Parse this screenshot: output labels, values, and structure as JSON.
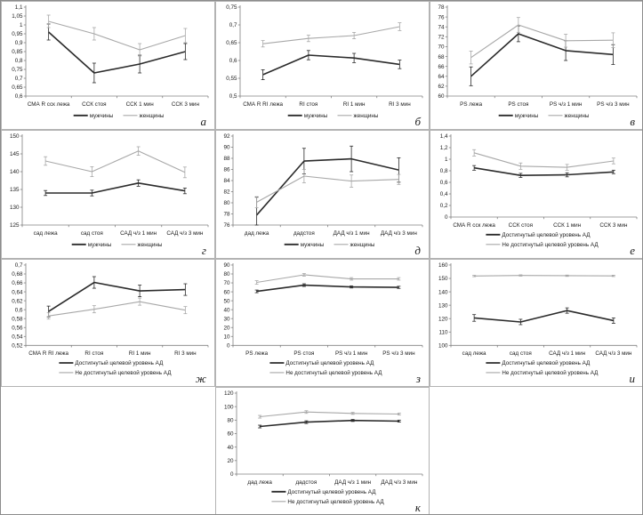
{
  "colors": {
    "series_dark": "#2b2b2b",
    "series_light": "#a8a8a8",
    "axis": "#808080",
    "text": "#1a1a1a",
    "panel_border": "#b3b3b3",
    "background": "#ffffff"
  },
  "chart_data": [
    {
      "label": "а",
      "type": "line",
      "categories": [
        "СМА R сск лежа",
        "ССК стоя",
        "ССК 1 мин",
        "ССК 3 мин"
      ],
      "ylim": [
        0.6,
        1.1
      ],
      "yticks": {
        "values": [
          0.6,
          0.65,
          0.7,
          0.75,
          0.8,
          0.85,
          0.9,
          0.95,
          1,
          1.05,
          1.1
        ],
        "labels": [
          "0,6",
          "0,65",
          "0,7",
          "0,75",
          "0,8",
          "0,85",
          "0,9",
          "0,95",
          "1",
          "1,05",
          "1,1"
        ]
      },
      "legend_layout": "row",
      "series": [
        {
          "name": "мужчины",
          "role": "dark",
          "values": [
            0.96,
            0.73,
            0.78,
            0.85
          ],
          "errors": [
            0.045,
            0.055,
            0.05,
            0.045
          ]
        },
        {
          "name": "женщины",
          "role": "light",
          "values": [
            1.02,
            0.95,
            0.86,
            0.94
          ],
          "errors": [
            0.035,
            0.035,
            0.035,
            0.04
          ]
        }
      ]
    },
    {
      "label": "б",
      "type": "line",
      "categories": [
        "СМА R RI лежа",
        "RI стоя",
        "RI 1 мин",
        "RI 3 мин"
      ],
      "ylim": [
        0.5,
        0.75
      ],
      "yticks": {
        "values": [
          0.5,
          0.55,
          0.6,
          0.65,
          0.7,
          0.75
        ],
        "labels": [
          "0,5",
          "0,55",
          "0,6",
          "0,65",
          "0,7",
          "0,75"
        ]
      },
      "legend_layout": "row",
      "series": [
        {
          "name": "мужчины",
          "role": "dark",
          "values": [
            0.56,
            0.615,
            0.607,
            0.589
          ],
          "errors": [
            0.014,
            0.013,
            0.013,
            0.012
          ]
        },
        {
          "name": "женщины",
          "role": "light",
          "values": [
            0.647,
            0.662,
            0.67,
            0.695
          ],
          "errors": [
            0.009,
            0.009,
            0.009,
            0.011
          ]
        }
      ]
    },
    {
      "label": "в",
      "type": "line",
      "categories": [
        "PS лежа",
        "PS стоя",
        "PS ч/з 1 мин",
        "PS ч/з 3 мин"
      ],
      "ylim": [
        60,
        78
      ],
      "yticks": {
        "values": [
          60,
          62,
          64,
          66,
          68,
          70,
          72,
          74,
          76,
          78
        ],
        "labels": [
          "60",
          "62",
          "64",
          "66",
          "68",
          "70",
          "72",
          "74",
          "76",
          "78"
        ]
      },
      "legend_layout": "row",
      "series": [
        {
          "name": "мужчины",
          "role": "dark",
          "values": [
            64,
            72.6,
            69.2,
            68.4
          ],
          "errors": [
            1.9,
            1.6,
            2.0,
            2.0
          ]
        },
        {
          "name": "женщины",
          "role": "light",
          "values": [
            67.8,
            74.4,
            71.2,
            71.3
          ],
          "errors": [
            1.3,
            1.5,
            1.3,
            1.5
          ]
        }
      ]
    },
    {
      "label": "г",
      "type": "line",
      "categories": [
        "сад лежа",
        "сад стоя",
        "САД ч/з 1 мин",
        "САД ч/з 3 мин"
      ],
      "ylim": [
        125,
        150
      ],
      "yticks": {
        "values": [
          125,
          130,
          135,
          140,
          145,
          150
        ],
        "labels": [
          "125",
          "130",
          "135",
          "140",
          "145",
          "150"
        ]
      },
      "legend_layout": "row",
      "series": [
        {
          "name": "мужчины",
          "role": "dark",
          "values": [
            134,
            134,
            136.8,
            134.6
          ],
          "errors": [
            0.7,
            0.8,
            0.9,
            0.8
          ]
        },
        {
          "name": "женщины",
          "role": "light",
          "values": [
            143,
            140,
            145.8,
            139.8
          ],
          "errors": [
            1.2,
            1.4,
            1.2,
            1.5
          ]
        }
      ]
    },
    {
      "label": "д",
      "type": "line",
      "categories": [
        "дад лежа",
        "дадстоя",
        "ДАД ч/з 1 мин",
        "ДАД ч/з 3 мин"
      ],
      "ylim": [
        76,
        92
      ],
      "yticks": {
        "values": [
          76,
          78,
          80,
          82,
          84,
          86,
          88,
          90,
          92
        ],
        "labels": [
          "76",
          "78",
          "80",
          "82",
          "84",
          "86",
          "88",
          "90",
          "92"
        ]
      },
      "legend_layout": "row",
      "series": [
        {
          "name": "мужчины",
          "role": "dark",
          "values": [
            77.8,
            87.5,
            87.9,
            85.9
          ],
          "errors": [
            3.2,
            2.3,
            2.3,
            2.2
          ]
        },
        {
          "name": "женщины",
          "role": "light",
          "values": [
            80.1,
            84.8,
            83.9,
            84.2
          ],
          "errors": [
            1.0,
            1.2,
            1.1,
            0.9
          ]
        }
      ]
    },
    {
      "label": "е",
      "type": "line",
      "categories": [
        "СМА R сск лежа",
        "ССК стоя",
        "ССК 1 мин",
        "ССК 3 мин"
      ],
      "ylim": [
        0,
        1.4
      ],
      "yticks": {
        "values": [
          0,
          0.2,
          0.4,
          0.6,
          0.8,
          1,
          1.2,
          1.4
        ],
        "labels": [
          "0",
          "0,2",
          "0,4",
          "0,6",
          "0,8",
          "1",
          "1,2",
          "1,4"
        ]
      },
      "legend_layout": "stack",
      "series": [
        {
          "name": "Достигнутый целевой уровень АД",
          "role": "dark",
          "values": [
            0.85,
            0.72,
            0.73,
            0.78
          ],
          "errors": [
            0.04,
            0.035,
            0.035,
            0.03
          ]
        },
        {
          "name": "Не достигнутый целевой уровень АД",
          "role": "light",
          "values": [
            1.11,
            0.88,
            0.86,
            0.97
          ],
          "errors": [
            0.055,
            0.055,
            0.05,
            0.05
          ]
        }
      ]
    },
    {
      "label": "ж",
      "type": "line",
      "categories": [
        "СМА R RI лежа",
        "RI стоя",
        "RI 1 мин",
        "RI 3 мин"
      ],
      "ylim": [
        0.52,
        0.7
      ],
      "yticks": {
        "values": [
          0.52,
          0.54,
          0.56,
          0.58,
          0.6,
          0.62,
          0.64,
          0.66,
          0.68,
          0.7
        ],
        "labels": [
          "0,52",
          "0,54",
          "0,56",
          "0,58",
          "0,6",
          "0,62",
          "0,64",
          "0,66",
          "0,68",
          "0,7"
        ]
      },
      "legend_layout": "stack",
      "series": [
        {
          "name": "Достигнутый целевой уровень АД",
          "role": "dark",
          "values": [
            0.596,
            0.661,
            0.642,
            0.645
          ],
          "errors": [
            0.012,
            0.013,
            0.013,
            0.013
          ]
        },
        {
          "name": "Не достигнутый целевой уровень АД",
          "role": "light",
          "values": [
            0.586,
            0.601,
            0.618,
            0.599
          ],
          "errors": [
            0.007,
            0.008,
            0.008,
            0.008
          ]
        }
      ]
    },
    {
      "label": "з",
      "type": "line",
      "categories": [
        "PS лежа",
        "PS стоя",
        "PS ч/з 1 мин",
        "PS ч/з 3 мин"
      ],
      "ylim": [
        0,
        90
      ],
      "yticks": {
        "values": [
          0,
          10,
          20,
          30,
          40,
          50,
          60,
          70,
          80,
          90
        ],
        "labels": [
          "0",
          "10",
          "20",
          "30",
          "40",
          "50",
          "60",
          "70",
          "80",
          "90"
        ]
      },
      "legend_layout": "stack",
      "series": [
        {
          "name": "Достигнутый целевой уровень АД",
          "role": "dark",
          "values": [
            60.5,
            67.5,
            65.5,
            65
          ],
          "errors": [
            1.5,
            1.5,
            1.2,
            1.2
          ]
        },
        {
          "name": "Не достигнутый целевой уровень АД",
          "role": "light",
          "values": [
            70.5,
            79,
            74.5,
            74.5
          ],
          "errors": [
            2,
            1.5,
            1.4,
            1.4
          ]
        }
      ]
    },
    {
      "label": "и",
      "type": "line",
      "categories": [
        "сад лежа",
        "сад стоя",
        "САД ч/з 1 мин",
        "САД ч/з 3 мин"
      ],
      "ylim": [
        100,
        160
      ],
      "yticks": {
        "values": [
          100,
          110,
          120,
          130,
          140,
          150,
          160
        ],
        "labels": [
          "100",
          "110",
          "120",
          "130",
          "140",
          "150",
          "160"
        ]
      },
      "legend_layout": "stack",
      "series": [
        {
          "name": "Достигнутый целевой уровень АД",
          "role": "dark",
          "values": [
            120.5,
            117.5,
            126,
            118.5
          ],
          "errors": [
            2.5,
            2,
            2,
            2
          ]
        },
        {
          "name": "Не достигнутый целевой уровень АД",
          "role": "light",
          "values": [
            151.8,
            152.2,
            152,
            151.9
          ],
          "errors": [
            0.5,
            0.5,
            0.5,
            0.5
          ]
        }
      ]
    },
    {
      "label": "к",
      "type": "line",
      "categories": [
        "дад лежа",
        "дадстоя",
        "ДАД ч/з 1 мин",
        "ДАД ч/з 3 мин"
      ],
      "ylim": [
        0,
        120
      ],
      "yticks": {
        "values": [
          0,
          20,
          40,
          60,
          80,
          100,
          120
        ],
        "labels": [
          "0",
          "20",
          "40",
          "60",
          "80",
          "100",
          "120"
        ]
      },
      "legend_layout": "stack",
      "series": [
        {
          "name": "Достигнутый целевой уровень АД",
          "role": "dark",
          "values": [
            70.5,
            77,
            79.5,
            78.5
          ],
          "errors": [
            2,
            2,
            1.5,
            1.5
          ]
        },
        {
          "name": "Не достигнутый целевой уровень АД",
          "role": "light",
          "values": [
            85,
            92,
            90,
            89
          ],
          "errors": [
            2,
            2,
            1.5,
            1.5
          ]
        }
      ]
    }
  ]
}
